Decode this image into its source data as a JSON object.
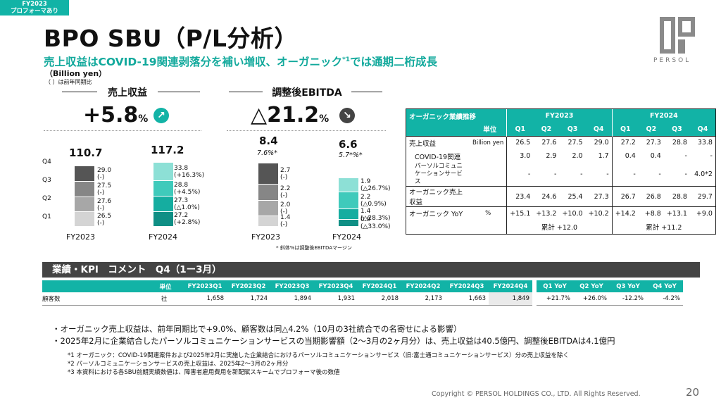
{
  "tag": {
    "line1": "FY2023",
    "line2": "プロフォーマあり"
  },
  "title": "BPO SBU（P/L分析）",
  "subtitle": {
    "main": "売上収益はCOVID-19関連剥落分を補い増収、オーガニック",
    "sup": "*1",
    "rest": "では通期二桁成長"
  },
  "unit": "（Billion yen）",
  "unit_note": "（ ）は前年同期比",
  "logo_text": "PERSOL",
  "revenue": {
    "heading": "売上収益",
    "growth": "+5.8",
    "growth_unit": "%",
    "growth_icon": "arrow-up-right",
    "quarter_labels": [
      "Q4",
      "Q3",
      "Q2",
      "Q1"
    ],
    "fy2023": {
      "year": "FY2023",
      "total": "110.7",
      "values": [
        26.5,
        27.6,
        27.5,
        29.0
      ],
      "labels": [
        [
          "26.5",
          "(-)"
        ],
        [
          "27.6",
          "(-)"
        ],
        [
          "27.5",
          "(-)"
        ],
        [
          "29.0",
          "(-)"
        ]
      ]
    },
    "fy2024": {
      "year": "FY2024",
      "total": "117.2",
      "values": [
        27.2,
        27.3,
        28.8,
        33.8
      ],
      "labels": [
        [
          "27.2",
          "(+2.8%)"
        ],
        [
          "27.3",
          "(△1.0%)"
        ],
        [
          "28.8",
          "(+4.5%)"
        ],
        [
          "33.8",
          "(+16.3%)"
        ]
      ]
    }
  },
  "ebitda": {
    "heading": "調整後EBITDA",
    "growth": "△21.2",
    "growth_unit": "%",
    "growth_icon": "arrow-down-right",
    "fy2023": {
      "year": "FY2023",
      "total": "8.4",
      "margin": "7.6%*",
      "values": [
        1.4,
        2.0,
        2.2,
        2.7
      ],
      "labels": [
        [
          "1.4",
          "(-)"
        ],
        [
          "2.0",
          "(-)"
        ],
        [
          "2.2",
          "(-)"
        ],
        [
          "2.7",
          "(-)"
        ]
      ]
    },
    "fy2024": {
      "year": "FY2024",
      "total": "6.6",
      "margin": "5.7*%*",
      "values": [
        0.9,
        1.4,
        2.2,
        1.9
      ],
      "labels": [
        [
          "0.9",
          "(△33.0%)"
        ],
        [
          "1.4",
          "(△28.3%)"
        ],
        [
          "2.2",
          "(△0.9%)"
        ],
        [
          "1.9",
          "(△26.7%)"
        ]
      ]
    },
    "note": "* 斜体%は調整後EBITDAマージン"
  },
  "colors": {
    "teal": [
      "#8de0d6",
      "#3fcabb",
      "#15ada0",
      "#0f8f85"
    ],
    "gray": [
      "#d4d4d4",
      "#a7a7a7",
      "#868686",
      "#555555"
    ],
    "header": "#12b3a6",
    "dark_bar": "#444444"
  },
  "organic_table": {
    "title": "オーガニック業績推移",
    "unit_label": "単位",
    "fy2023": "FY2023",
    "fy2024": "FY2024",
    "quarters": [
      "Q1",
      "Q2",
      "Q3",
      "Q4"
    ],
    "rows": [
      {
        "label": "売上収益",
        "unit": "Billion yen",
        "fy2023": [
          "26.5",
          "27.6",
          "27.5",
          "29.0"
        ],
        "fy2024": [
          "27.2",
          "27.3",
          "28.8",
          "33.8"
        ]
      },
      {
        "label": "COVID-19関連",
        "unit": "",
        "fy2023": [
          "3.0",
          "2.9",
          "2.0",
          "1.7"
        ],
        "fy2024": [
          "0.4",
          "0.4",
          "-",
          "-"
        ]
      },
      {
        "label": "パーソルコミュニケーションサービス",
        "unit": "",
        "fy2023": [
          "-",
          "-",
          "-",
          "-"
        ],
        "fy2024": [
          "-",
          "-",
          "-",
          "4.0*2"
        ]
      },
      {
        "label": "オーガニック売上収益",
        "unit": "",
        "fy2023": [
          "23.4",
          "24.6",
          "25.4",
          "27.3"
        ],
        "fy2024": [
          "26.7",
          "26.8",
          "28.8",
          "29.7"
        ]
      },
      {
        "label": "オーガニック YoY",
        "unit": "%",
        "fy2023": [
          "+15.1",
          "+13.2",
          "+10.0",
          "+10.2"
        ],
        "fy2024": [
          "+14.2",
          "+8.8",
          "+13.1",
          "+9.0"
        ]
      }
    ],
    "cumulative_2023": "累計 +12.0",
    "cumulative_2024": "累計 +11.2"
  },
  "kpi": {
    "bar_title": "業績・KPI　コメント　Q4（1ー3月）",
    "headers": [
      "",
      "単位",
      "FY2023Q1",
      "FY2023Q2",
      "FY2023Q3",
      "FY2023Q4",
      "FY2024Q1",
      "FY2024Q2",
      "FY2024Q3",
      "FY2024Q4",
      "Q1 YoY",
      "Q2 YoY",
      "Q3 YoY",
      "Q4 YoY"
    ],
    "row": [
      "顧客数",
      "社",
      "1,658",
      "1,724",
      "1,894",
      "1,931",
      "2,018",
      "2,173",
      "1,663",
      "1,849",
      "+21.7%",
      "+26.0%",
      "-12.2%",
      "-4.2%"
    ]
  },
  "bullets": [
    "・オーガニック売上収益は、前年同期比で+9.0%、顧客数は同△4.2%（10月の3社統合での名寄せによる影響）",
    "・2025年2月に企業結合したパーソルコミュニケーションサービスの当期影響額（2～3月の2ヶ月分）は、売上収益は40.5億円、調整後EBITDAは4.1億円"
  ],
  "footnotes": [
    "*1 オーガニック：COVID-19関連案件および2025年2月に実施した企業結合におけるパーソルコミュニケーションサービス（旧:富士通コミュニケーションサービス）分の売上収益を除く",
    "*2 パーソルコミュニケーションサービスの売上収益は、2025年2～3月の2ヶ月分",
    "*3 本資料における各SBU前期実績数値は、障害者雇用費用を新配賦スキームでプロフォーマ後の数値"
  ],
  "copyright": "Copyright © PERSOL HOLDINGS CO., LTD. All Rights Reserved.",
  "page_number": "20"
}
